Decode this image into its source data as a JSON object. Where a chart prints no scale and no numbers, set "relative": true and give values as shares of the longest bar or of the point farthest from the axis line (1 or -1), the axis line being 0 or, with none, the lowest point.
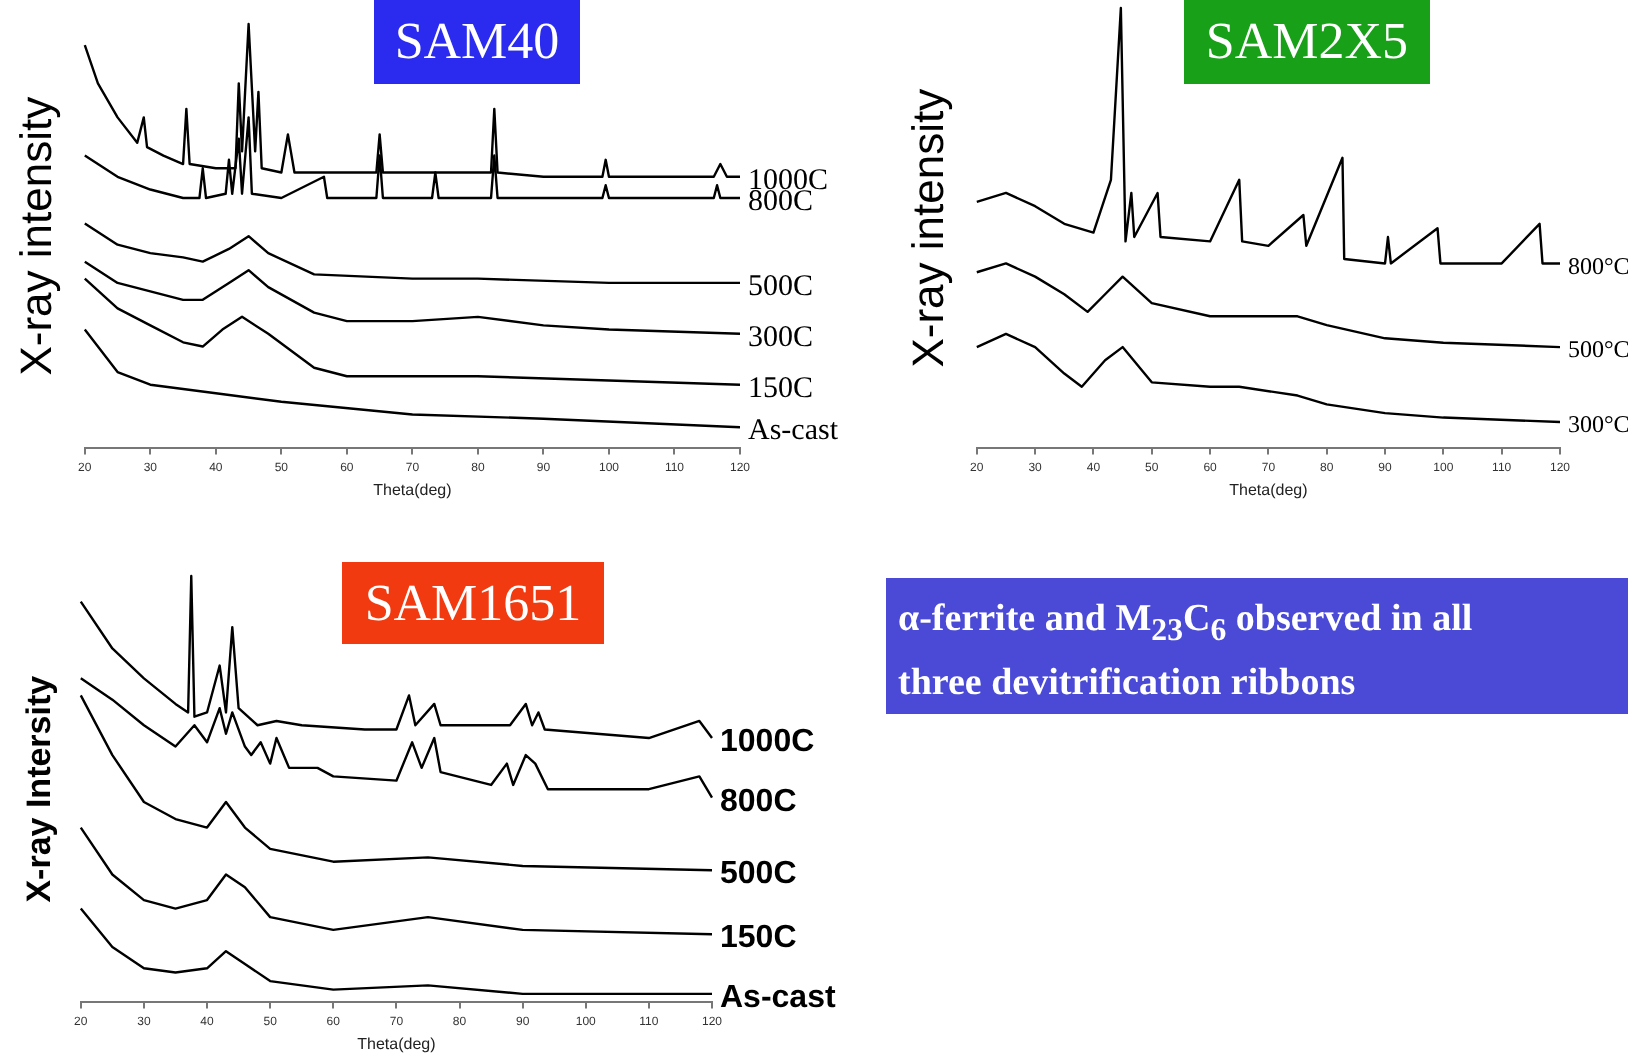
{
  "chart_data": [
    {
      "type": "line",
      "title": "SAM40",
      "xlabel": "Theta(deg)",
      "ylabel": "X-ray intensity",
      "relative": true,
      "xlim": [
        20,
        120
      ],
      "xticks": [
        20,
        30,
        40,
        50,
        60,
        70,
        80,
        90,
        100,
        110,
        120
      ],
      "series": [
        {
          "name": "1000C",
          "color": "#000000",
          "x": [
            20,
            22,
            25,
            28,
            29,
            29.5,
            32,
            35,
            35.5,
            36,
            40,
            43,
            43.5,
            44,
            45,
            46,
            46.5,
            47,
            50,
            51,
            52,
            60,
            64.5,
            65,
            65.5,
            75,
            82,
            82.5,
            83,
            90,
            99,
            99.5,
            100,
            110,
            116,
            117,
            118,
            120
          ],
          "values": [
            0.95,
            0.86,
            0.78,
            0.72,
            0.78,
            0.71,
            0.69,
            0.67,
            0.8,
            0.67,
            0.66,
            0.66,
            0.86,
            0.7,
            1.0,
            0.7,
            0.84,
            0.66,
            0.65,
            0.74,
            0.65,
            0.65,
            0.65,
            0.74,
            0.65,
            0.65,
            0.65,
            0.8,
            0.65,
            0.64,
            0.64,
            0.68,
            0.64,
            0.64,
            0.64,
            0.67,
            0.64,
            0.64
          ]
        },
        {
          "name": "800C",
          "color": "#000000",
          "x": [
            20,
            25,
            30,
            35,
            37.5,
            38,
            38.5,
            41.5,
            42,
            42.5,
            43.5,
            44,
            45,
            45.5,
            50,
            56.5,
            57,
            64.5,
            65,
            65.5,
            73,
            73.5,
            74,
            82,
            82.5,
            83,
            99,
            99.5,
            100,
            116,
            116.5,
            117,
            120
          ],
          "values": [
            0.69,
            0.64,
            0.61,
            0.59,
            0.59,
            0.66,
            0.59,
            0.6,
            0.68,
            0.6,
            0.73,
            0.6,
            0.78,
            0.6,
            0.59,
            0.64,
            0.59,
            0.59,
            0.69,
            0.59,
            0.59,
            0.65,
            0.59,
            0.59,
            0.69,
            0.59,
            0.59,
            0.62,
            0.59,
            0.59,
            0.62,
            0.59,
            0.59
          ]
        },
        {
          "name": "500C",
          "color": "#000000",
          "x": [
            20,
            25,
            30,
            35,
            38,
            42,
            45,
            48,
            55,
            70,
            80,
            100,
            120
          ],
          "values": [
            0.53,
            0.48,
            0.46,
            0.45,
            0.44,
            0.47,
            0.5,
            0.46,
            0.41,
            0.4,
            0.4,
            0.39,
            0.39
          ]
        },
        {
          "name": "300C",
          "color": "#000000",
          "x": [
            20,
            25,
            30,
            35,
            38,
            42,
            45,
            48,
            55,
            60,
            70,
            80,
            90,
            100,
            120
          ],
          "values": [
            0.44,
            0.39,
            0.37,
            0.35,
            0.35,
            0.39,
            0.42,
            0.38,
            0.32,
            0.3,
            0.3,
            0.31,
            0.29,
            0.28,
            0.27
          ]
        },
        {
          "name": "150C",
          "color": "#000000",
          "x": [
            20,
            25,
            30,
            35,
            38,
            41,
            44,
            48,
            55,
            60,
            80,
            100,
            120
          ],
          "values": [
            0.4,
            0.33,
            0.29,
            0.25,
            0.24,
            0.28,
            0.31,
            0.27,
            0.19,
            0.17,
            0.17,
            0.16,
            0.15
          ]
        },
        {
          "name": "As-cast",
          "color": "#000000",
          "x": [
            20,
            25,
            30,
            40,
            50,
            70,
            90,
            120
          ],
          "values": [
            0.28,
            0.18,
            0.15,
            0.13,
            0.11,
            0.08,
            0.07,
            0.05
          ]
        }
      ]
    },
    {
      "type": "line",
      "title": "SAM2X5",
      "xlabel": "Theta(deg)",
      "ylabel": "X-ray intensity",
      "relative": true,
      "xlim": [
        20,
        120
      ],
      "xticks": [
        20,
        30,
        40,
        50,
        60,
        70,
        80,
        90,
        100,
        110,
        120
      ],
      "series": [
        {
          "name": "800°C",
          "color": "#000000",
          "x": [
            20,
            25,
            30,
            35,
            40,
            43,
            44.7,
            45.5,
            46.5,
            47,
            51,
            51.5,
            60,
            65,
            65.5,
            70,
            76,
            76.5,
            82.7,
            83,
            90,
            90.5,
            91,
            99,
            99.5,
            110,
            116.5,
            117,
            120
          ],
          "values": [
            0.56,
            0.58,
            0.55,
            0.51,
            0.49,
            0.61,
            1.0,
            0.47,
            0.58,
            0.48,
            0.58,
            0.48,
            0.47,
            0.61,
            0.47,
            0.46,
            0.53,
            0.46,
            0.66,
            0.43,
            0.42,
            0.48,
            0.42,
            0.5,
            0.42,
            0.42,
            0.51,
            0.42,
            0.42
          ]
        },
        {
          "name": "500°C",
          "color": "#000000",
          "x": [
            20,
            25,
            30,
            35,
            39,
            42,
            45,
            50,
            60,
            75,
            80,
            90,
            100,
            120
          ],
          "values": [
            0.4,
            0.42,
            0.39,
            0.35,
            0.31,
            0.35,
            0.39,
            0.33,
            0.3,
            0.3,
            0.28,
            0.25,
            0.24,
            0.23
          ]
        },
        {
          "name": "300°C",
          "color": "#000000",
          "x": [
            20,
            25,
            30,
            35,
            38,
            42,
            45,
            50,
            60,
            65,
            75,
            80,
            90,
            100,
            120
          ],
          "values": [
            0.23,
            0.26,
            0.23,
            0.17,
            0.14,
            0.2,
            0.23,
            0.15,
            0.14,
            0.14,
            0.12,
            0.1,
            0.08,
            0.07,
            0.06
          ]
        }
      ]
    },
    {
      "type": "line",
      "title": "SAM1651",
      "xlabel": "Theta(deg)",
      "ylabel": "X-ray Intersity",
      "relative": true,
      "xlim": [
        20,
        120
      ],
      "xticks": [
        20,
        30,
        40,
        50,
        60,
        70,
        80,
        90,
        100,
        110,
        120
      ],
      "series": [
        {
          "name": "1000C",
          "color": "#000000",
          "x": [
            20,
            25,
            30,
            35,
            37,
            37.5,
            38,
            40,
            42,
            43,
            44,
            45,
            48,
            51,
            55,
            65,
            70,
            72,
            73,
            76,
            77,
            88,
            90.5,
            91.5,
            92.5,
            93.5,
            110,
            118,
            120
          ],
          "values": [
            0.94,
            0.83,
            0.76,
            0.7,
            0.68,
            1.0,
            0.67,
            0.68,
            0.79,
            0.68,
            0.88,
            0.69,
            0.65,
            0.66,
            0.65,
            0.64,
            0.64,
            0.72,
            0.65,
            0.7,
            0.65,
            0.65,
            0.7,
            0.65,
            0.68,
            0.64,
            0.62,
            0.66,
            0.62
          ]
        },
        {
          "name": "800C",
          "color": "#000000",
          "x": [
            20,
            25,
            30,
            35,
            38,
            40,
            42,
            43,
            44,
            46,
            47,
            48.5,
            50,
            51,
            53,
            57.5,
            60,
            70,
            72.5,
            74,
            76,
            77,
            85,
            87.5,
            88.5,
            90.5,
            92,
            94,
            110,
            118,
            120
          ],
          "values": [
            0.76,
            0.71,
            0.65,
            0.6,
            0.65,
            0.61,
            0.69,
            0.63,
            0.68,
            0.6,
            0.58,
            0.61,
            0.56,
            0.62,
            0.55,
            0.55,
            0.53,
            0.52,
            0.61,
            0.55,
            0.62,
            0.54,
            0.51,
            0.56,
            0.51,
            0.58,
            0.56,
            0.5,
            0.5,
            0.53,
            0.48
          ]
        },
        {
          "name": "500C",
          "color": "#000000",
          "x": [
            20,
            25,
            30,
            35,
            40,
            43,
            46,
            50,
            60,
            75,
            90,
            120
          ],
          "values": [
            0.72,
            0.58,
            0.47,
            0.43,
            0.41,
            0.47,
            0.41,
            0.36,
            0.33,
            0.34,
            0.32,
            0.31
          ]
        },
        {
          "name": "150C",
          "color": "#000000",
          "x": [
            20,
            25,
            30,
            35,
            40,
            43,
            46,
            50,
            60,
            75,
            90,
            120
          ],
          "values": [
            0.41,
            0.3,
            0.24,
            0.22,
            0.24,
            0.3,
            0.27,
            0.2,
            0.17,
            0.2,
            0.17,
            0.16
          ]
        },
        {
          "name": "As-cast",
          "color": "#000000",
          "x": [
            20,
            25,
            30,
            35,
            40,
            43,
            46,
            50,
            60,
            75,
            90,
            120
          ],
          "values": [
            0.22,
            0.13,
            0.08,
            0.07,
            0.08,
            0.12,
            0.09,
            0.05,
            0.03,
            0.04,
            0.02,
            0.02
          ]
        }
      ]
    },
    {
      "type": "other",
      "annotations": [
        "α-ferrite and M$_{23}$C$_{6}$ observed in all three devitrification ribbons"
      ]
    }
  ]
}
